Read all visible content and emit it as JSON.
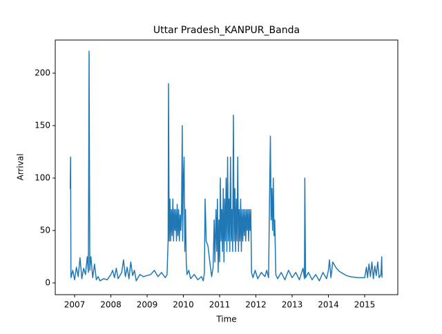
{
  "chart_data": {
    "type": "line",
    "title": "Uttar Pradesh_KANPUR_Banda",
    "x_label": "Time",
    "y_label": "Arrival",
    "x": [
      2006.88,
      2006.89,
      2006.9,
      2006.95,
      2007.0,
      2007.05,
      2007.1,
      2007.15,
      2007.2,
      2007.25,
      2007.3,
      2007.35,
      2007.38,
      2007.4,
      2007.42,
      2007.45,
      2007.5,
      2007.55,
      2007.6,
      2007.65,
      2007.7,
      2007.8,
      2007.9,
      2008.0,
      2008.05,
      2008.1,
      2008.15,
      2008.2,
      2008.3,
      2008.35,
      2008.4,
      2008.45,
      2008.5,
      2008.55,
      2008.6,
      2008.65,
      2008.7,
      2008.8,
      2008.9,
      2009.0,
      2009.1,
      2009.2,
      2009.3,
      2009.4,
      2009.5,
      2009.55,
      2009.58,
      2009.59,
      2009.61,
      2009.63,
      2009.65,
      2009.67,
      2009.69,
      2009.71,
      2009.73,
      2009.75,
      2009.77,
      2009.79,
      2009.81,
      2009.83,
      2009.85,
      2009.87,
      2009.89,
      2009.91,
      2009.93,
      2009.95,
      2009.97,
      2009.98,
      2010.0,
      2010.02,
      2010.04,
      2010.06,
      2010.08,
      2010.1,
      2010.15,
      2010.2,
      2010.3,
      2010.4,
      2010.5,
      2010.55,
      2010.58,
      2010.6,
      2010.63,
      2010.68,
      2010.73,
      2010.78,
      2010.82,
      2010.85,
      2010.87,
      2010.9,
      2010.92,
      2010.94,
      2010.96,
      2010.98,
      2011.0,
      2011.02,
      2011.04,
      2011.06,
      2011.08,
      2011.1,
      2011.12,
      2011.14,
      2011.16,
      2011.18,
      2011.2,
      2011.22,
      2011.24,
      2011.26,
      2011.28,
      2011.3,
      2011.32,
      2011.34,
      2011.36,
      2011.38,
      2011.4,
      2011.42,
      2011.44,
      2011.46,
      2011.48,
      2011.5,
      2011.52,
      2011.54,
      2011.56,
      2011.58,
      2011.6,
      2011.62,
      2011.64,
      2011.66,
      2011.68,
      2011.7,
      2011.72,
      2011.74,
      2011.76,
      2011.78,
      2011.8,
      2011.82,
      2011.84,
      2011.86,
      2011.88,
      2011.92,
      2011.98,
      2012.05,
      2012.15,
      2012.25,
      2012.3,
      2012.35,
      2012.38,
      2012.4,
      2012.42,
      2012.44,
      2012.46,
      2012.48,
      2012.5,
      2012.52,
      2012.55,
      2012.6,
      2012.7,
      2012.8,
      2012.9,
      2013.0,
      2013.1,
      2013.2,
      2013.3,
      2013.34,
      2013.35,
      2013.37,
      2013.45,
      2013.55,
      2013.65,
      2013.75,
      2013.85,
      2013.95,
      2014.0,
      2014.03,
      2014.07,
      2014.12,
      2014.2,
      2014.3,
      2014.4,
      2014.5,
      2014.6,
      2014.8,
      2015.0,
      2015.05,
      2015.08,
      2015.12,
      2015.16,
      2015.2,
      2015.24,
      2015.28,
      2015.32,
      2015.36,
      2015.4,
      2015.45,
      2015.47,
      2015.48
    ],
    "series": [
      {
        "color": "#1f77b4",
        "values": [
          90,
          120,
          5,
          12,
          3,
          15,
          6,
          24,
          4,
          14,
          8,
          25,
          10,
          221,
          12,
          25,
          5,
          18,
          3,
          6,
          2,
          4,
          3,
          8,
          12,
          5,
          14,
          4,
          10,
          22,
          6,
          15,
          4,
          20,
          7,
          12,
          2,
          8,
          6,
          7,
          8,
          12,
          6,
          10,
          5,
          8,
          40,
          190,
          40,
          80,
          40,
          70,
          45,
          80,
          40,
          70,
          50,
          70,
          40,
          75,
          45,
          70,
          40,
          65,
          50,
          70,
          150,
          40,
          100,
          120,
          30,
          70,
          20,
          8,
          12,
          4,
          8,
          3,
          6,
          2,
          10,
          80,
          40,
          35,
          20,
          6,
          15,
          60,
          20,
          70,
          30,
          80,
          10,
          60,
          20,
          100,
          40,
          70,
          30,
          90,
          20,
          80,
          40,
          100,
          30,
          120,
          40,
          80,
          30,
          120,
          40,
          70,
          30,
          160,
          40,
          90,
          30,
          80,
          40,
          120,
          30,
          70,
          40,
          80,
          30,
          70,
          40,
          70,
          45,
          70,
          40,
          70,
          50,
          70,
          40,
          70,
          50,
          70,
          10,
          5,
          12,
          4,
          10,
          6,
          12,
          5,
          90,
          140,
          60,
          90,
          50,
          100,
          45,
          60,
          8,
          4,
          10,
          3,
          12,
          5,
          10,
          3,
          14,
          4,
          100,
          5,
          10,
          3,
          8,
          2,
          10,
          4,
          12,
          22,
          5,
          20,
          15,
          11,
          9,
          7,
          6,
          5,
          5,
          15,
          5,
          18,
          6,
          20,
          4,
          16,
          7,
          20,
          5,
          8,
          25,
          5
        ]
      }
    ],
    "xlim": [
      2006.467,
      2015.914
    ],
    "ylim": [
      -11.2,
      231.6
    ],
    "xticks": [
      2007,
      2008,
      2009,
      2010,
      2011,
      2012,
      2013,
      2014,
      2015
    ],
    "yticks": [
      0,
      50,
      100,
      150,
      200
    ]
  }
}
